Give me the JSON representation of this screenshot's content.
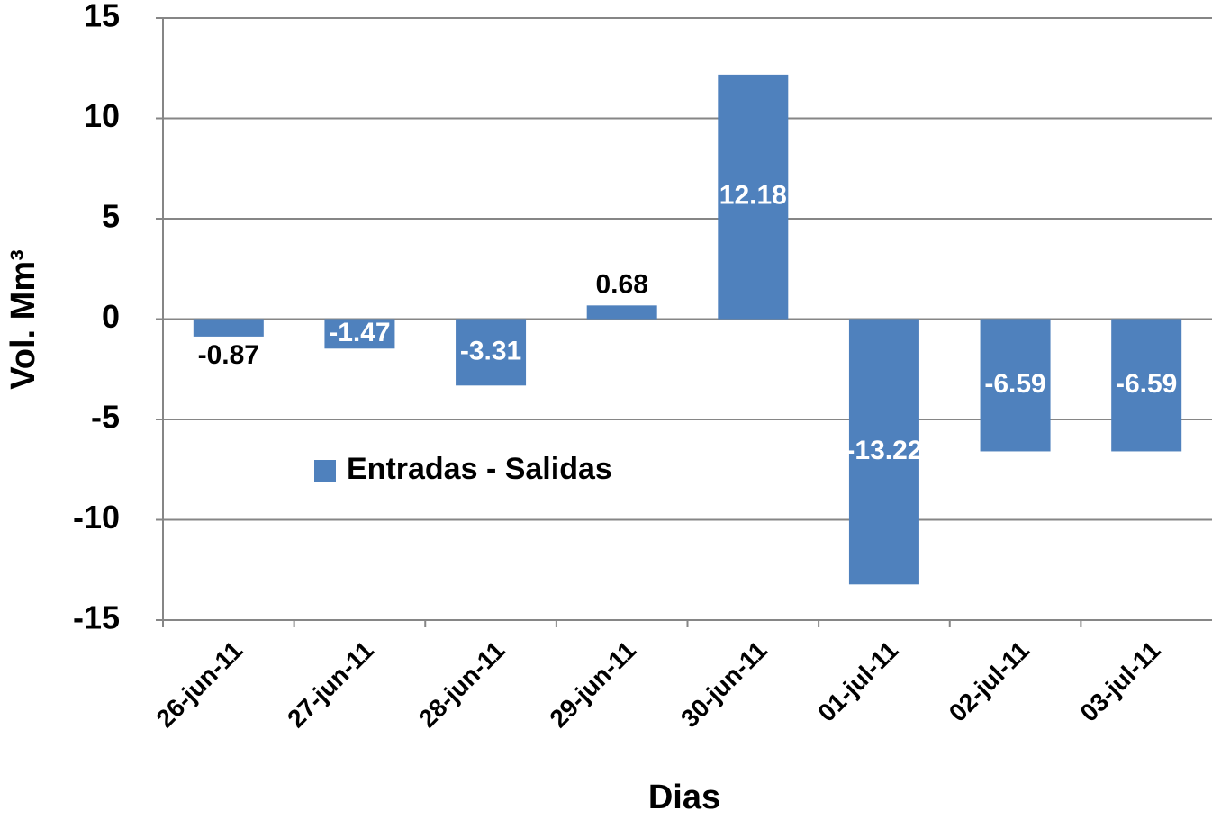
{
  "chart_data": {
    "type": "bar",
    "xlabel": "Dias",
    "ylabel": "Vol. Mm³",
    "categories": [
      "26-jun-11",
      "27-jun-11",
      "28-jun-11",
      "29-jun-11",
      "30-jun-11",
      "01-jul-11",
      "02-jul-11",
      "03-jul-11"
    ],
    "series": [
      {
        "name": "Entradas - Salidas",
        "color": "#4f81bd",
        "values": [
          -0.87,
          -1.47,
          -3.31,
          0.68,
          12.18,
          -13.22,
          -6.59,
          -6.59
        ]
      }
    ],
    "ylim": [
      -15,
      15
    ],
    "yticks": [
      -15,
      -10,
      -5,
      0,
      5,
      10,
      15
    ],
    "grid": true,
    "legend": "left"
  }
}
